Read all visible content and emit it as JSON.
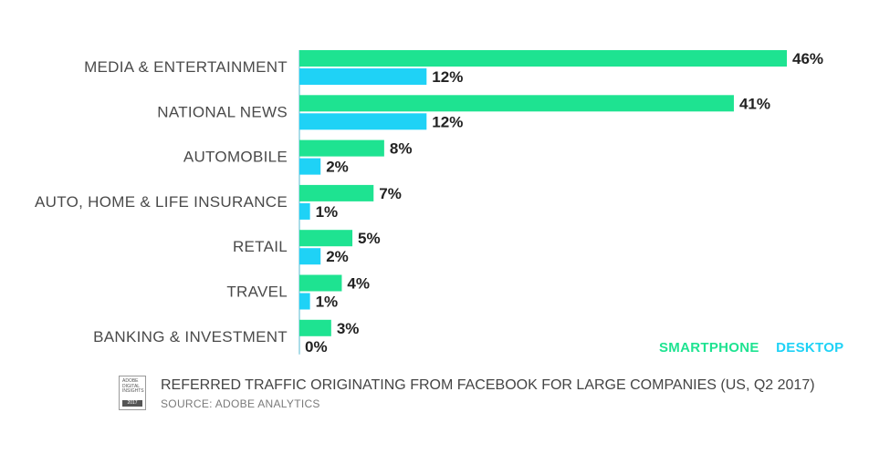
{
  "colors": {
    "smartphone": "#1ee391",
    "desktop": "#1fd2f6",
    "axis": "#8fd1e0"
  },
  "chart_data": {
    "type": "bar",
    "orientation": "horizontal",
    "categories": [
      "MEDIA & ENTERTAINMENT",
      "NATIONAL NEWS",
      "AUTOMOBILE",
      "AUTO, HOME & LIFE INSURANCE",
      "RETAIL",
      "TRAVEL",
      "BANKING & INVESTMENT"
    ],
    "series": [
      {
        "name": "SMARTPHONE",
        "values": [
          46,
          41,
          8,
          7,
          5,
          4,
          3
        ]
      },
      {
        "name": "DESKTOP",
        "values": [
          12,
          12,
          2,
          1,
          2,
          1,
          0
        ]
      }
    ],
    "value_labels": {
      "SMARTPHONE": [
        "46%",
        "41%",
        "8%",
        "7%",
        "5%",
        "4%",
        "3%"
      ],
      "DESKTOP": [
        "12%",
        "12%",
        "2%",
        "1%",
        "2%",
        "1%",
        "0%"
      ]
    },
    "title": "REFERRED TRAFFIC ORIGINATING FROM FACEBOOK FOR LARGE COMPANIES (US, Q2 2017)",
    "xlim": [
      0,
      46
    ],
    "grid": false,
    "legend": "bottom-right"
  },
  "footer": {
    "badge_lines": [
      "ADOBE",
      "DIGITAL",
      "INSIGHTS"
    ],
    "badge_year": "2017",
    "title": "REFERRED TRAFFIC ORIGINATING FROM FACEBOOK FOR LARGE COMPANIES (US, Q2 2017)",
    "source": "SOURCE: ADOBE ANALYTICS"
  }
}
